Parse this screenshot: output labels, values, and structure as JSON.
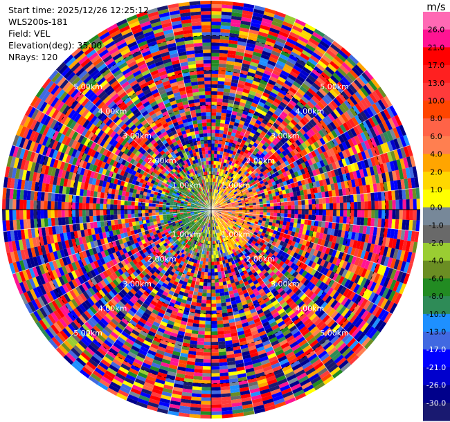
{
  "info": {
    "start_time": "Start time: 2025/12/26 12:25:12",
    "instrument": "WLS200s-181",
    "field": "Field: VEL",
    "elevation": "Elevation(deg): 35.00",
    "nrays": "NRays: 120"
  },
  "colorbar": {
    "unit": "m/s",
    "ticks": [
      "26.0",
      "21.0",
      "17.0",
      "13.0",
      "10.0",
      "8.0",
      "6.0",
      "4.0",
      "2.0",
      "1.0",
      "0.0",
      "-1.0",
      "-2.0",
      "-4.0",
      "-6.0",
      "-8.0",
      "-10.0",
      "-13.0",
      "-17.0",
      "-21.0",
      "-26.0",
      "-30.0"
    ],
    "colors": [
      "#ff69b4",
      "#ff1493",
      "#ff0000",
      "#ff2020",
      "#ff3b3b",
      "#ff4500",
      "#ff6347",
      "#ff7f50",
      "#ffa500",
      "#ffd700",
      "#ffff00",
      "#778899",
      "#696969",
      "#9acd32",
      "#6b8e23",
      "#228b22",
      "#2e8b57",
      "#1e90ff",
      "#4169e1",
      "#0000ff",
      "#0000cd",
      "#00008b",
      "#191970"
    ]
  },
  "chart_data": {
    "type": "ppi",
    "field": "VEL",
    "units": "m/s",
    "elevation_deg": 35.0,
    "n_rays": 120,
    "range_rings_km": [
      {
        "label": "1.00km",
        "km": 1.0
      },
      {
        "label": "2.00km",
        "km": 2.0
      },
      {
        "label": "3.00km",
        "km": 3.0
      },
      {
        "label": "4.00km",
        "km": 4.0
      },
      {
        "label": "5.00km",
        "km": 5.0
      }
    ],
    "max_range_km": 6.0,
    "color_levels": [
      -30,
      -26,
      -21,
      -17,
      -13,
      -10,
      -8,
      -6,
      -4,
      -2,
      -1,
      0,
      1,
      2,
      4,
      6,
      8,
      10,
      13,
      17,
      21,
      26,
      30
    ],
    "near_field": {
      "radius_km": 1.4,
      "west": "negative (green/blue, -2 to -13 m/s)",
      "east": "positive (yellow/orange, 2 to 8 m/s)"
    },
    "far_field": "noise (random velocities across full range)"
  }
}
